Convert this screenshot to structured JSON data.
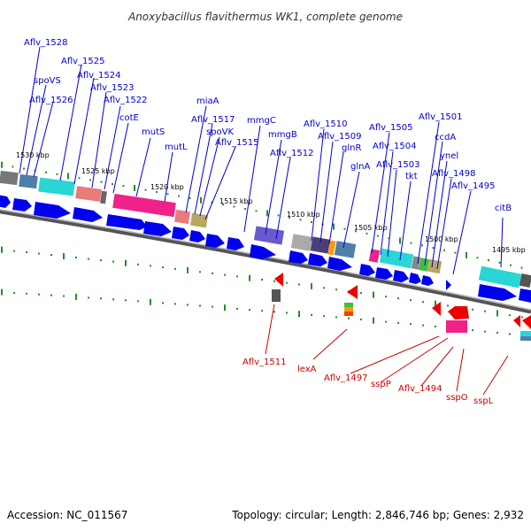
{
  "title": "Anoxybacillus flavithermus WK1, complete genome",
  "footer": {
    "accession": "Accession: NC_011567",
    "topology": "Topology: circular; Length: 2,846,746 bp; Genes: 2,932"
  },
  "colors": {
    "forward_label": "#0000cc",
    "reverse_label": "#cc0000",
    "cds_arrow": "#0000ee",
    "backbone": "#888888",
    "tick": "#2a8a2a"
  },
  "scale_labels": [
    "1530 kbp",
    "1525 kbp",
    "1520 kbp",
    "1515 kbp",
    "1510 kbp",
    "1505 kbp",
    "1500 kbp",
    "1495 kbp"
  ],
  "forward_labels": [
    "Aflv_1528",
    "spoVS",
    "Aflv_1525",
    "Aflv_1524",
    "Aflv_1526",
    "Aflv_1523",
    "Aflv_1522",
    "cotE",
    "mutS",
    "mutL",
    "miaA",
    "Aflv_1517",
    "spoVK",
    "Aflv_1515",
    "mmgC",
    "mmgB",
    "Aflv_1512",
    "Aflv_1510",
    "Aflv_1509",
    "glnR",
    "glnA",
    "Aflv_1505",
    "Aflv_1504",
    "Aflv_1503",
    "tkt",
    "Aflv_1501",
    "ccdA",
    "ynel",
    "Aflv_1498",
    "Aflv_1495",
    "citB"
  ],
  "reverse_labels": [
    "Aflv_1511",
    "lexA",
    "Aflv_1497",
    "sspP",
    "Aflv_1494",
    "sspO",
    "sspL"
  ]
}
